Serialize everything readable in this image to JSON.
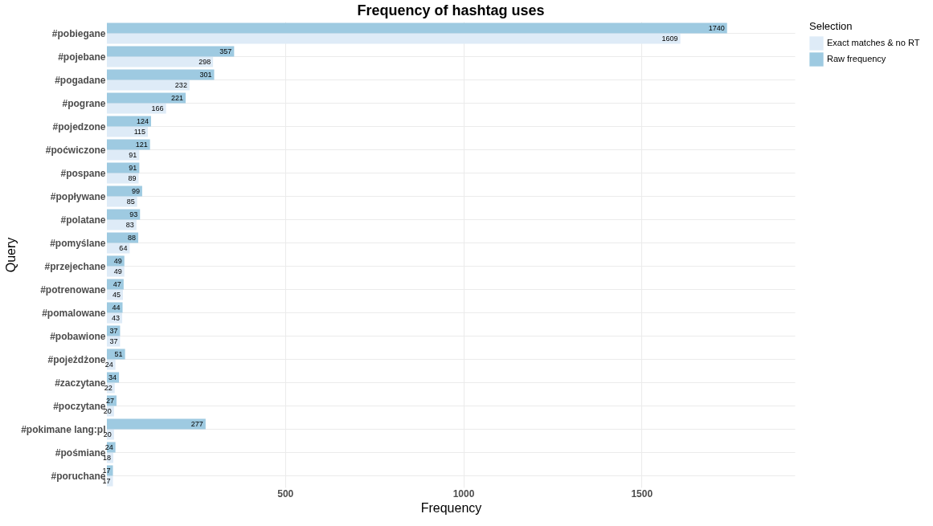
{
  "chart_data": {
    "type": "bar",
    "orientation": "horizontal",
    "title": "Frequency of hashtag uses",
    "xlabel": "Frequency",
    "ylabel": "Query",
    "legend_title": "Selection",
    "legend": "right",
    "grid": true,
    "data_labels": true,
    "categories": [
      "#pobiegane",
      "#pojebane",
      "#pogadane",
      "#pograne",
      "#pojedzone",
      "#poćwiczone",
      "#pospane",
      "#popływane",
      "#polatane",
      "#pomyślane",
      "#przejechane",
      "#potrenowane",
      "#pomalowane",
      "#pobawione",
      "#pojeżdżone",
      "#zaczytane",
      "#poczytane",
      "#pokimane lang:pl",
      "#pośmiane",
      "#poruchane"
    ],
    "series": [
      {
        "name": "Exact matches & no RT",
        "color": "#deebf7",
        "values": [
          1609,
          298,
          232,
          166,
          115,
          91,
          89,
          85,
          83,
          64,
          49,
          45,
          43,
          37,
          24,
          22,
          20,
          20,
          18,
          17
        ]
      },
      {
        "name": "Raw frequency",
        "color": "#9ecae1",
        "values": [
          1740,
          357,
          301,
          221,
          124,
          121,
          91,
          99,
          93,
          88,
          49,
          47,
          44,
          37,
          51,
          34,
          27,
          277,
          24,
          17
        ]
      }
    ],
    "xlim": [
      0,
      1930
    ],
    "xticks": [
      500,
      1000,
      1500
    ]
  }
}
